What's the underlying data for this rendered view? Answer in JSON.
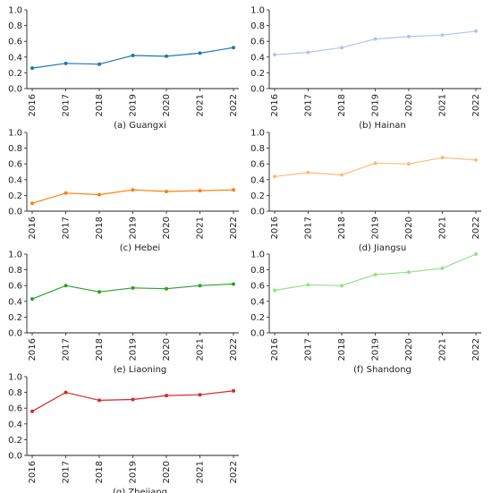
{
  "chart_data": [
    {
      "type": "line",
      "caption": "(a) Guangxi",
      "x": [
        "2016",
        "2017",
        "2018",
        "2019",
        "2020",
        "2021",
        "2022"
      ],
      "series": [
        {
          "values": [
            0.26,
            0.32,
            0.31,
            0.42,
            0.41,
            0.45,
            0.52
          ]
        }
      ],
      "color": "#1f77b4",
      "ylim": [
        0,
        1.0
      ],
      "yticks": [
        "0.0",
        "0.2",
        "0.4",
        "0.6",
        "0.8",
        "1.0"
      ]
    },
    {
      "type": "line",
      "caption": "(b) Hainan",
      "x": [
        "2016",
        "2017",
        "2018",
        "2019",
        "2020",
        "2021",
        "2022"
      ],
      "series": [
        {
          "values": [
            0.43,
            0.46,
            0.52,
            0.63,
            0.66,
            0.68,
            0.73
          ]
        }
      ],
      "color": "#aec7e8",
      "ylim": [
        0,
        1.0
      ],
      "yticks": [
        "0.0",
        "0.2",
        "0.4",
        "0.6",
        "0.8",
        "1.0"
      ]
    },
    {
      "type": "line",
      "caption": "(c) Hebei",
      "x": [
        "2016",
        "2017",
        "2018",
        "2019",
        "2020",
        "2021",
        "2022"
      ],
      "series": [
        {
          "values": [
            0.1,
            0.23,
            0.21,
            0.27,
            0.25,
            0.26,
            0.27
          ]
        }
      ],
      "color": "#ff7f0e",
      "ylim": [
        0,
        1.0
      ],
      "yticks": [
        "0.0",
        "0.2",
        "0.4",
        "0.6",
        "0.8",
        "1.0"
      ]
    },
    {
      "type": "line",
      "caption": "(d) Jiangsu",
      "x": [
        "2016",
        "2017",
        "2018",
        "2019",
        "2020",
        "2021",
        "2022"
      ],
      "series": [
        {
          "values": [
            0.44,
            0.49,
            0.46,
            0.61,
            0.6,
            0.68,
            0.65
          ]
        }
      ],
      "color": "#ffbb78",
      "ylim": [
        0,
        1.0
      ],
      "yticks": [
        "0.0",
        "0.2",
        "0.4",
        "0.6",
        "0.8",
        "1.0"
      ]
    },
    {
      "type": "line",
      "caption": "(e) Liaoning",
      "x": [
        "2016",
        "2017",
        "2018",
        "2019",
        "2020",
        "2021",
        "2022"
      ],
      "series": [
        {
          "values": [
            0.43,
            0.6,
            0.52,
            0.57,
            0.56,
            0.6,
            0.62
          ]
        }
      ],
      "color": "#2ca02c",
      "ylim": [
        0,
        1.0
      ],
      "yticks": [
        "0.0",
        "0.2",
        "0.4",
        "0.6",
        "0.8",
        "1.0"
      ]
    },
    {
      "type": "line",
      "caption": "(f) Shandong",
      "x": [
        "2016",
        "2017",
        "2018",
        "2019",
        "2020",
        "2021",
        "2022"
      ],
      "series": [
        {
          "values": [
            0.54,
            0.61,
            0.6,
            0.74,
            0.77,
            0.82,
            1.0
          ]
        }
      ],
      "color": "#98df8a",
      "ylim": [
        0,
        1.0
      ],
      "yticks": [
        "0.0",
        "0.2",
        "0.4",
        "0.6",
        "0.8",
        "1.0"
      ]
    },
    {
      "type": "line",
      "caption": "(g) Zhejiang",
      "x": [
        "2016",
        "2017",
        "2018",
        "2019",
        "2020",
        "2021",
        "2022"
      ],
      "series": [
        {
          "values": [
            0.56,
            0.8,
            0.7,
            0.71,
            0.76,
            0.77,
            0.82
          ]
        }
      ],
      "color": "#d62728",
      "ylim": [
        0,
        1.0
      ],
      "yticks": [
        "0.0",
        "0.2",
        "0.4",
        "0.6",
        "0.8",
        "1.0"
      ]
    }
  ]
}
